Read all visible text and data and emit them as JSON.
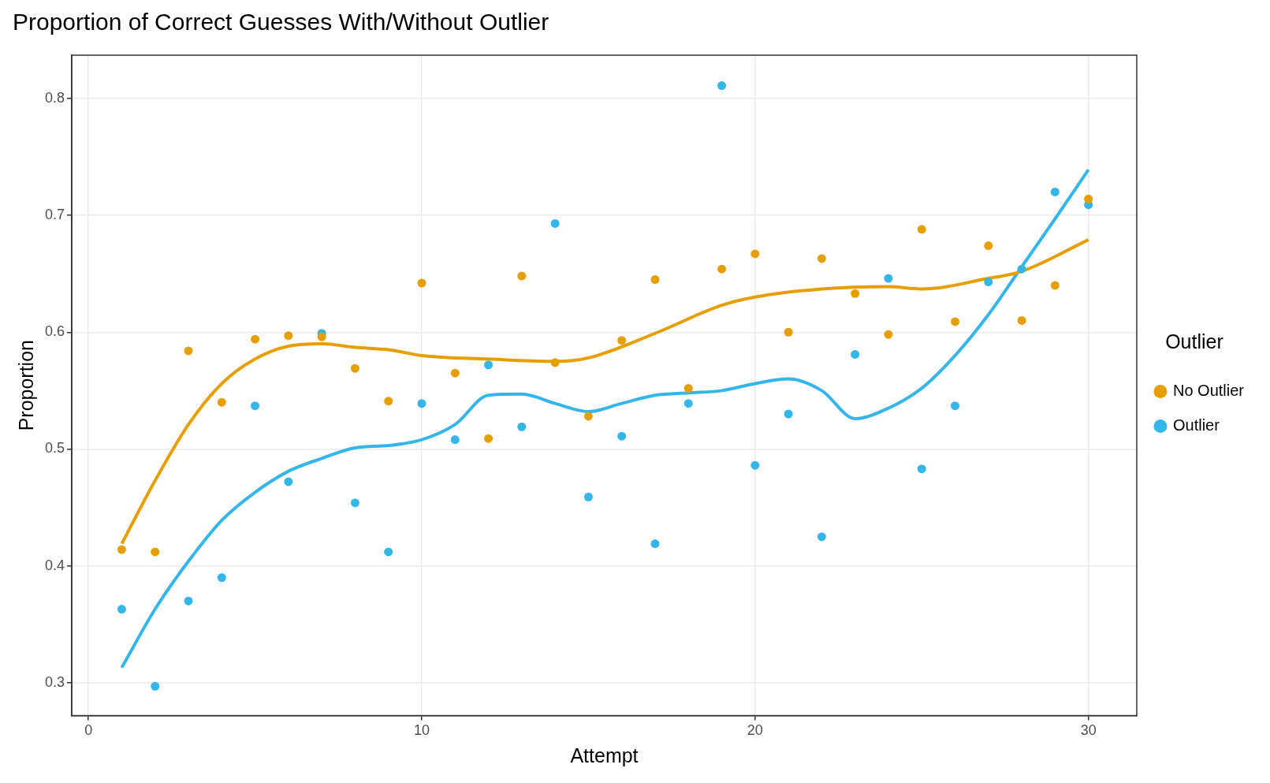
{
  "chart_data": {
    "type": "scatter",
    "title": "Proportion of Correct Guesses With/Without Outlier",
    "xlabel": "Attempt",
    "ylabel": "Proportion",
    "legend_title": "Outlier",
    "legend": "right",
    "grid": true,
    "marker": "circle",
    "xlim": [
      -0.5,
      31.45
    ],
    "xticks": [
      0,
      10,
      20,
      30
    ],
    "ylim": [
      0.272,
      0.837
    ],
    "yticks": [
      0.3,
      0.4,
      0.5,
      0.6,
      0.7,
      0.8
    ],
    "x": [
      1,
      2,
      3,
      4,
      5,
      6,
      7,
      8,
      9,
      10,
      11,
      12,
      13,
      14,
      15,
      16,
      17,
      18,
      19,
      20,
      21,
      22,
      23,
      24,
      25,
      26,
      27,
      28,
      29,
      30
    ],
    "series": [
      {
        "name": "No Outlier",
        "color": "#e69f00",
        "values": [
          0.414,
          0.412,
          0.584,
          0.54,
          0.594,
          0.597,
          0.596,
          0.569,
          0.541,
          0.642,
          0.565,
          0.509,
          0.648,
          0.574,
          0.528,
          0.593,
          0.645,
          0.552,
          0.654,
          0.667,
          0.6,
          0.663,
          0.633,
          0.598,
          0.688,
          0.609,
          0.674,
          0.61,
          0.64,
          0.714
        ]
      },
      {
        "name": "Outlier",
        "color": "#35b6e9",
        "values": [
          0.363,
          0.297,
          0.37,
          0.39,
          0.537,
          0.472,
          0.599,
          0.454,
          0.412,
          0.539,
          0.508,
          0.572,
          0.519,
          0.693,
          0.459,
          0.511,
          0.419,
          0.539,
          0.811,
          0.486,
          0.53,
          0.425,
          0.581,
          0.646,
          0.483,
          0.537,
          0.643,
          0.654,
          0.72,
          0.709
        ]
      },
      {
        "type": "line",
        "marker": "none",
        "color": "#e69f00",
        "x": [
          1,
          2,
          3,
          4,
          5,
          6,
          7,
          8,
          9,
          10,
          12,
          14,
          15,
          17,
          19,
          20,
          22,
          24,
          25,
          27,
          28,
          30
        ],
        "values": [
          0.419,
          0.473,
          0.521,
          0.556,
          0.577,
          0.588,
          0.59,
          0.587,
          0.585,
          0.58,
          0.577,
          0.575,
          0.578,
          0.599,
          0.623,
          0.63,
          0.637,
          0.639,
          0.637,
          0.646,
          0.652,
          0.679
        ]
      },
      {
        "type": "line",
        "marker": "none",
        "color": "#35b6e9",
        "x": [
          1,
          2,
          3,
          4,
          5,
          6,
          7,
          8,
          9,
          10,
          11,
          12,
          13,
          14,
          15,
          16,
          17,
          18,
          19,
          20,
          21,
          22,
          23,
          24,
          25,
          26,
          27,
          28,
          29,
          30
        ],
        "values": [
          0.313,
          0.363,
          0.404,
          0.439,
          0.463,
          0.481,
          0.492,
          0.501,
          0.503,
          0.508,
          0.521,
          0.546,
          0.547,
          0.539,
          0.532,
          0.539,
          0.546,
          0.548,
          0.55,
          0.556,
          0.56,
          0.55,
          0.526,
          0.535,
          0.552,
          0.58,
          0.615,
          0.656,
          0.697,
          0.739
        ]
      }
    ]
  }
}
